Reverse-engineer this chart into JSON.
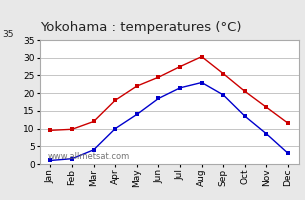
{
  "title": "Yokohama : temperatures (°C)",
  "months": [
    "Jan",
    "Feb",
    "Mar",
    "Apr",
    "May",
    "Jun",
    "Jul",
    "Aug",
    "Sep",
    "Oct",
    "Nov",
    "Dec"
  ],
  "max_temps": [
    9.5,
    9.8,
    12.0,
    18.0,
    22.0,
    24.5,
    27.5,
    30.3,
    25.5,
    20.5,
    16.0,
    11.5
  ],
  "min_temps": [
    1.0,
    1.5,
    4.0,
    10.0,
    14.0,
    18.5,
    21.5,
    23.0,
    19.5,
    13.5,
    8.5,
    3.0
  ],
  "max_color": "#cc0000",
  "min_color": "#0000cc",
  "bg_color": "#e8e8e8",
  "plot_bg": "#ffffff",
  "ylim": [
    0,
    35
  ],
  "yticks": [
    0,
    5,
    10,
    15,
    20,
    25,
    30,
    35
  ],
  "watermark": "www.allmetsat.com",
  "title_fontsize": 9.5,
  "tick_fontsize": 6.5,
  "watermark_fontsize": 6
}
